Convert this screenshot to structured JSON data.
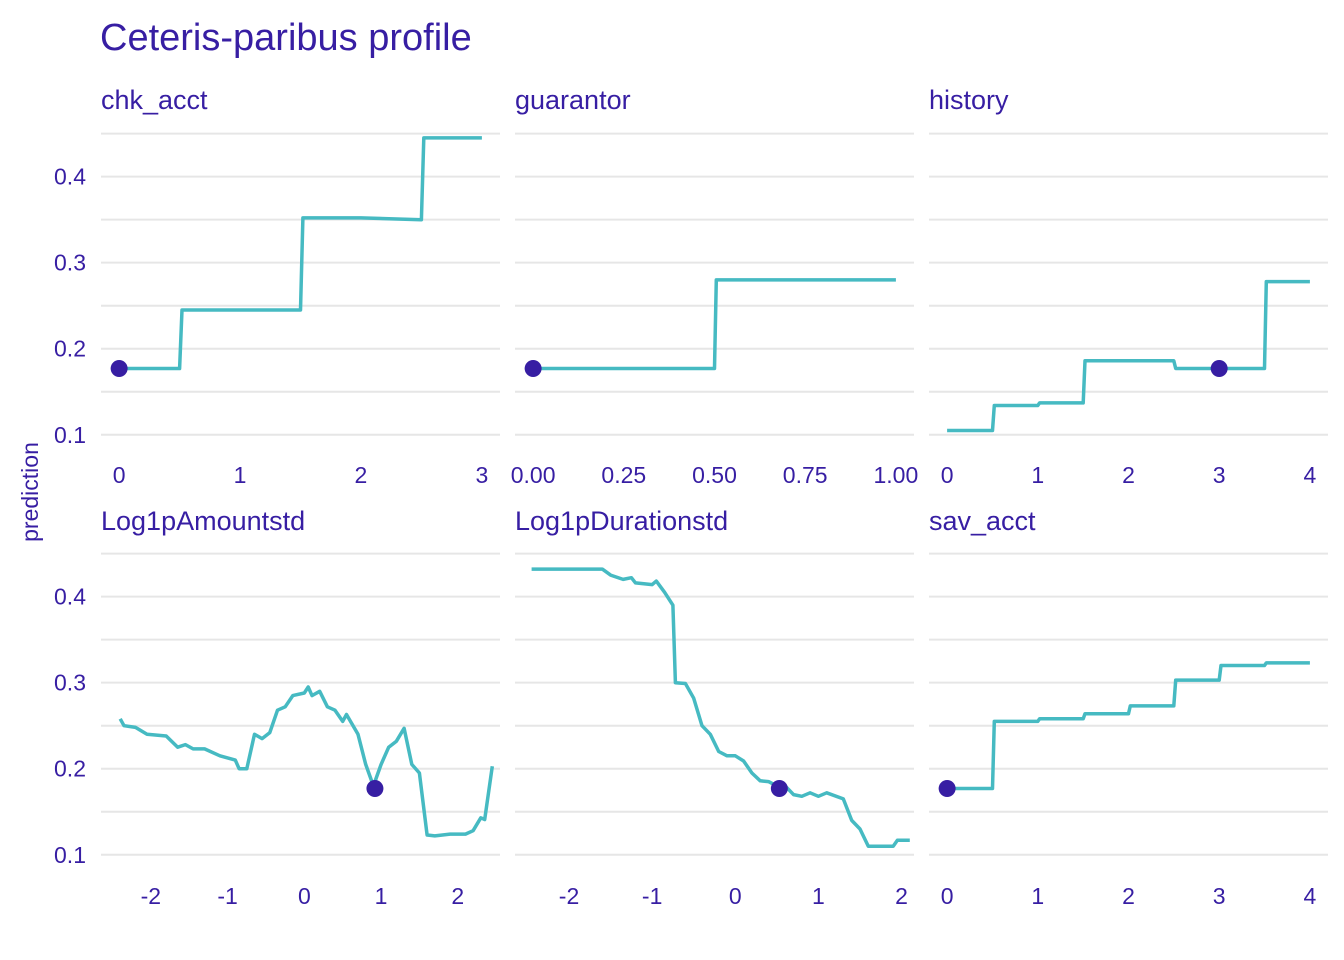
{
  "colors": {
    "text": "#371ea3",
    "line": "#46bac2",
    "point": "#371ea3",
    "grid": "#e6e6e6"
  },
  "chart_data": {
    "type": "line",
    "title": "Ceteris-paribus profile",
    "ylabel": "prediction",
    "grid": true,
    "y_ticks": [
      0.1,
      0.2,
      0.3,
      0.4
    ],
    "ylim": [
      0.08,
      0.46
    ],
    "panels": [
      {
        "name": "chk_acct",
        "xlim": [
          -0.15,
          3.15
        ],
        "x_ticks": [
          {
            "v": 0,
            "l": "0"
          },
          {
            "v": 1,
            "l": "1"
          },
          {
            "v": 2,
            "l": "2"
          },
          {
            "v": 3,
            "l": "3"
          }
        ],
        "line": [
          [
            0,
            0.177
          ],
          [
            0.5,
            0.177
          ],
          [
            0.52,
            0.245
          ],
          [
            1.5,
            0.245
          ],
          [
            1.52,
            0.352
          ],
          [
            2.0,
            0.352
          ],
          [
            2.5,
            0.35
          ],
          [
            2.52,
            0.445
          ],
          [
            3.0,
            0.445
          ]
        ],
        "point": [
          0,
          0.177
        ]
      },
      {
        "name": "guarantor",
        "xlim": [
          -0.05,
          1.05
        ],
        "x_ticks": [
          {
            "v": 0,
            "l": "0.00"
          },
          {
            "v": 0.25,
            "l": "0.25"
          },
          {
            "v": 0.5,
            "l": "0.50"
          },
          {
            "v": 0.75,
            "l": "0.75"
          },
          {
            "v": 1,
            "l": "1.00"
          }
        ],
        "line": [
          [
            0,
            0.177
          ],
          [
            0.5,
            0.177
          ],
          [
            0.505,
            0.28
          ],
          [
            1.0,
            0.28
          ]
        ],
        "point": [
          0,
          0.177
        ]
      },
      {
        "name": "history",
        "xlim": [
          -0.2,
          4.2
        ],
        "x_ticks": [
          {
            "v": 0,
            "l": "0"
          },
          {
            "v": 1,
            "l": "1"
          },
          {
            "v": 2,
            "l": "2"
          },
          {
            "v": 3,
            "l": "3"
          },
          {
            "v": 4,
            "l": "4"
          }
        ],
        "line": [
          [
            0,
            0.105
          ],
          [
            0.5,
            0.105
          ],
          [
            0.52,
            0.134
          ],
          [
            1.0,
            0.134
          ],
          [
            1.02,
            0.137
          ],
          [
            1.5,
            0.137
          ],
          [
            1.52,
            0.186
          ],
          [
            2.5,
            0.186
          ],
          [
            2.52,
            0.177
          ],
          [
            3.5,
            0.177
          ],
          [
            3.52,
            0.278
          ],
          [
            4.0,
            0.278
          ]
        ],
        "point": [
          3,
          0.177
        ]
      },
      {
        "name": "Log1pAmountstd",
        "xlim": [
          -2.65,
          2.55
        ],
        "x_ticks": [
          {
            "v": -2,
            "l": "-2"
          },
          {
            "v": -1,
            "l": "-1"
          },
          {
            "v": 0,
            "l": "0"
          },
          {
            "v": 1,
            "l": "1"
          },
          {
            "v": 2,
            "l": "2"
          }
        ],
        "line": [
          [
            -2.4,
            0.258
          ],
          [
            -2.35,
            0.25
          ],
          [
            -2.2,
            0.248
          ],
          [
            -2.05,
            0.24
          ],
          [
            -1.8,
            0.238
          ],
          [
            -1.65,
            0.225
          ],
          [
            -1.55,
            0.228
          ],
          [
            -1.45,
            0.223
          ],
          [
            -1.3,
            0.223
          ],
          [
            -1.1,
            0.215
          ],
          [
            -0.9,
            0.21
          ],
          [
            -0.85,
            0.2
          ],
          [
            -0.75,
            0.2
          ],
          [
            -0.65,
            0.24
          ],
          [
            -0.55,
            0.235
          ],
          [
            -0.45,
            0.242
          ],
          [
            -0.35,
            0.268
          ],
          [
            -0.25,
            0.272
          ],
          [
            -0.15,
            0.285
          ],
          [
            0,
            0.288
          ],
          [
            0.05,
            0.295
          ],
          [
            0.1,
            0.285
          ],
          [
            0.2,
            0.29
          ],
          [
            0.3,
            0.272
          ],
          [
            0.4,
            0.268
          ],
          [
            0.5,
            0.255
          ],
          [
            0.55,
            0.263
          ],
          [
            0.7,
            0.24
          ],
          [
            0.8,
            0.205
          ],
          [
            0.9,
            0.18
          ],
          [
            1.0,
            0.205
          ],
          [
            1.1,
            0.225
          ],
          [
            1.2,
            0.232
          ],
          [
            1.3,
            0.247
          ],
          [
            1.4,
            0.205
          ],
          [
            1.5,
            0.195
          ],
          [
            1.6,
            0.123
          ],
          [
            1.7,
            0.122
          ],
          [
            1.8,
            0.123
          ],
          [
            1.9,
            0.124
          ],
          [
            2.1,
            0.124
          ],
          [
            2.2,
            0.128
          ],
          [
            2.3,
            0.143
          ],
          [
            2.35,
            0.141
          ],
          [
            2.45,
            0.203
          ]
        ],
        "point": [
          0.92,
          0.177
        ]
      },
      {
        "name": "Log1pDurationstd",
        "xlim": [
          -2.65,
          2.15
        ],
        "x_ticks": [
          {
            "v": -2,
            "l": "-2"
          },
          {
            "v": -1,
            "l": "-1"
          },
          {
            "v": 0,
            "l": "0"
          },
          {
            "v": 1,
            "l": "1"
          },
          {
            "v": 2,
            "l": "2"
          }
        ],
        "line": [
          [
            -2.45,
            0.432
          ],
          [
            -1.6,
            0.432
          ],
          [
            -1.5,
            0.425
          ],
          [
            -1.35,
            0.42
          ],
          [
            -1.25,
            0.422
          ],
          [
            -1.2,
            0.416
          ],
          [
            -1.0,
            0.414
          ],
          [
            -0.95,
            0.418
          ],
          [
            -0.85,
            0.405
          ],
          [
            -0.75,
            0.39
          ],
          [
            -0.72,
            0.3
          ],
          [
            -0.6,
            0.299
          ],
          [
            -0.5,
            0.282
          ],
          [
            -0.4,
            0.25
          ],
          [
            -0.3,
            0.24
          ],
          [
            -0.2,
            0.22
          ],
          [
            -0.1,
            0.215
          ],
          [
            0,
            0.215
          ],
          [
            0.1,
            0.209
          ],
          [
            0.2,
            0.195
          ],
          [
            0.3,
            0.186
          ],
          [
            0.4,
            0.185
          ],
          [
            0.5,
            0.18
          ],
          [
            0.6,
            0.18
          ],
          [
            0.7,
            0.17
          ],
          [
            0.8,
            0.168
          ],
          [
            0.9,
            0.172
          ],
          [
            1.0,
            0.168
          ],
          [
            1.1,
            0.172
          ],
          [
            1.3,
            0.165
          ],
          [
            1.4,
            0.14
          ],
          [
            1.5,
            0.13
          ],
          [
            1.6,
            0.11
          ],
          [
            1.9,
            0.11
          ],
          [
            1.95,
            0.117
          ],
          [
            2.1,
            0.117
          ]
        ],
        "point": [
          0.53,
          0.177
        ]
      },
      {
        "name": "sav_acct",
        "xlim": [
          -0.2,
          4.2
        ],
        "x_ticks": [
          {
            "v": 0,
            "l": "0"
          },
          {
            "v": 1,
            "l": "1"
          },
          {
            "v": 2,
            "l": "2"
          },
          {
            "v": 3,
            "l": "3"
          },
          {
            "v": 4,
            "l": "4"
          }
        ],
        "line": [
          [
            0,
            0.177
          ],
          [
            0.5,
            0.177
          ],
          [
            0.52,
            0.255
          ],
          [
            1.0,
            0.255
          ],
          [
            1.02,
            0.258
          ],
          [
            1.5,
            0.258
          ],
          [
            1.52,
            0.264
          ],
          [
            2.0,
            0.264
          ],
          [
            2.02,
            0.273
          ],
          [
            2.5,
            0.273
          ],
          [
            2.52,
            0.303
          ],
          [
            3.0,
            0.303
          ],
          [
            3.02,
            0.32
          ],
          [
            3.5,
            0.32
          ],
          [
            3.52,
            0.323
          ],
          [
            4.0,
            0.323
          ]
        ],
        "point": [
          0,
          0.177
        ]
      }
    ]
  }
}
